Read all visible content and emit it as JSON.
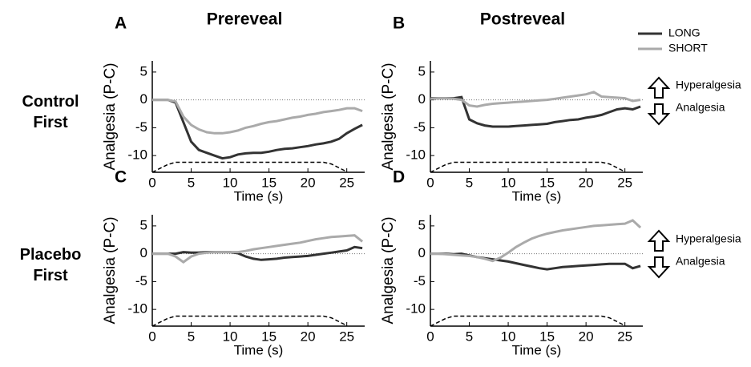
{
  "column_titles": [
    "Prereveal",
    "Postreveal"
  ],
  "row_labels": [
    "Control First",
    "Placebo First"
  ],
  "chart_data": [
    {
      "type": "line",
      "label": "A",
      "ylabel": "Analgesia (P-C)",
      "xlabel": "Time (s)",
      "x": [
        0,
        1,
        2,
        3,
        4,
        5,
        6,
        7,
        8,
        9,
        10,
        11,
        12,
        13,
        14,
        15,
        16,
        17,
        18,
        19,
        20,
        21,
        22,
        23,
        24,
        25,
        26,
        27
      ],
      "xlim": [
        0,
        27.3
      ],
      "ylim": [
        -13,
        7
      ],
      "xticks": [
        0,
        5,
        10,
        15,
        20,
        25
      ],
      "yticks": [
        -10,
        -5,
        0,
        5
      ],
      "hline": 0,
      "series": [
        {
          "color": "#333333",
          "values": [
            0,
            0,
            0,
            -0.5,
            -4,
            -7.5,
            -9,
            -9.5,
            -10,
            -10.5,
            -10.3,
            -9.8,
            -9.6,
            -9.5,
            -9.5,
            -9.3,
            -9,
            -8.8,
            -8.7,
            -8.5,
            -8.3,
            -8,
            -7.8,
            -7.5,
            -7,
            -6,
            -5.2,
            -4.5
          ]
        },
        {
          "color": "#aaaaaa",
          "values": [
            0,
            0,
            0,
            -0.3,
            -3,
            -4.5,
            -5.3,
            -5.8,
            -6,
            -6,
            -5.8,
            -5.5,
            -5,
            -4.7,
            -4.3,
            -4,
            -3.8,
            -3.5,
            -3.2,
            -3,
            -2.7,
            -2.5,
            -2.2,
            -2,
            -1.8,
            -1.5,
            -1.5,
            -2
          ]
        },
        {
          "color": "#000000",
          "style": "dashed",
          "values": [
            -13,
            -12.3,
            -11.6,
            -11.2,
            -11.2,
            -11.2,
            -11.2,
            -11.2,
            -11.2,
            -11.2,
            -11.2,
            -11.2,
            -11.2,
            -11.2,
            -11.2,
            -11.2,
            -11.2,
            -11.2,
            -11.2,
            -11.2,
            -11.2,
            -11.2,
            -11.2,
            -11.5,
            -12.2,
            -12.9,
            null,
            null
          ]
        }
      ]
    },
    {
      "type": "line",
      "label": "B",
      "ylabel": "Analgesia (P-C)",
      "xlabel": "Time (s)",
      "x": [
        0,
        1,
        2,
        3,
        4,
        5,
        6,
        7,
        8,
        9,
        10,
        11,
        12,
        13,
        14,
        15,
        16,
        17,
        18,
        19,
        20,
        21,
        22,
        23,
        24,
        25,
        26,
        27
      ],
      "xlim": [
        0,
        27.3
      ],
      "ylim": [
        -13,
        7
      ],
      "xticks": [
        0,
        5,
        10,
        15,
        20,
        25
      ],
      "yticks": [
        -10,
        -5,
        0,
        5
      ],
      "hline": 0,
      "annotations": [
        "Hyperalgesia",
        "Analgesia"
      ],
      "series": [
        {
          "name": "LONG",
          "color": "#333333",
          "values": [
            0.3,
            0.3,
            0.3,
            0.3,
            0.5,
            -3.5,
            -4.2,
            -4.6,
            -4.8,
            -4.8,
            -4.8,
            -4.7,
            -4.6,
            -4.5,
            -4.4,
            -4.3,
            -4,
            -3.8,
            -3.6,
            -3.5,
            -3.2,
            -3,
            -2.7,
            -2.2,
            -1.7,
            -1.5,
            -1.7,
            -1.2
          ]
        },
        {
          "name": "SHORT",
          "color": "#aaaaaa",
          "values": [
            0.2,
            0.3,
            0.3,
            0.2,
            0,
            -1,
            -1.2,
            -0.9,
            -0.7,
            -0.6,
            -0.5,
            -0.4,
            -0.3,
            -0.2,
            -0.1,
            0,
            0.2,
            0.4,
            0.6,
            0.8,
            1,
            1.4,
            0.6,
            0.5,
            0.4,
            0.3,
            -0.2,
            0
          ]
        },
        {
          "color": "#000000",
          "style": "dashed",
          "values": [
            -13,
            -12.3,
            -11.6,
            -11.2,
            -11.2,
            -11.2,
            -11.2,
            -11.2,
            -11.2,
            -11.2,
            -11.2,
            -11.2,
            -11.2,
            -11.2,
            -11.2,
            -11.2,
            -11.2,
            -11.2,
            -11.2,
            -11.2,
            -11.2,
            -11.2,
            -11.2,
            -11.5,
            -12.2,
            -12.9,
            null,
            null
          ]
        }
      ]
    },
    {
      "type": "line",
      "label": "C",
      "ylabel": "Analgesia (P-C)",
      "xlabel": "Time (s)",
      "x": [
        0,
        1,
        2,
        3,
        4,
        5,
        6,
        7,
        8,
        9,
        10,
        11,
        12,
        13,
        14,
        15,
        16,
        17,
        18,
        19,
        20,
        21,
        22,
        23,
        24,
        25,
        26,
        27
      ],
      "xlim": [
        0,
        27.3
      ],
      "ylim": [
        -13,
        7
      ],
      "xticks": [
        0,
        5,
        10,
        15,
        20,
        25
      ],
      "yticks": [
        -10,
        -5,
        0,
        5
      ],
      "hline": 0,
      "series": [
        {
          "color": "#333333",
          "values": [
            0,
            0,
            0,
            0,
            0.3,
            0.2,
            0.2,
            0.3,
            0.3,
            0.3,
            0.3,
            0.1,
            -0.5,
            -0.9,
            -1.1,
            -1,
            -0.9,
            -0.7,
            -0.6,
            -0.5,
            -0.4,
            -0.2,
            0,
            0.2,
            0.4,
            0.6,
            1.2,
            1
          ]
        },
        {
          "color": "#aaaaaa",
          "values": [
            0,
            0,
            0,
            -0.5,
            -1.5,
            -0.5,
            0,
            0.2,
            0.3,
            0.3,
            0.3,
            0.3,
            0.5,
            0.8,
            1,
            1.2,
            1.4,
            1.6,
            1.8,
            2,
            2.3,
            2.6,
            2.8,
            3,
            3.1,
            3.2,
            3.3,
            2.2
          ]
        },
        {
          "color": "#000000",
          "style": "dashed",
          "values": [
            -13,
            -12.3,
            -11.6,
            -11.2,
            -11.2,
            -11.2,
            -11.2,
            -11.2,
            -11.2,
            -11.2,
            -11.2,
            -11.2,
            -11.2,
            -11.2,
            -11.2,
            -11.2,
            -11.2,
            -11.2,
            -11.2,
            -11.2,
            -11.2,
            -11.2,
            -11.2,
            -11.5,
            -12.2,
            -12.9,
            null,
            null
          ]
        }
      ]
    },
    {
      "type": "line",
      "label": "D",
      "ylabel": "Analgesia (P-C)",
      "xlabel": "Time (s)",
      "x": [
        0,
        1,
        2,
        3,
        4,
        5,
        6,
        7,
        8,
        9,
        10,
        11,
        12,
        13,
        14,
        15,
        16,
        17,
        18,
        19,
        20,
        21,
        22,
        23,
        24,
        25,
        26,
        27
      ],
      "xlim": [
        0,
        27.3
      ],
      "ylim": [
        -13,
        7
      ],
      "xticks": [
        0,
        5,
        10,
        15,
        20,
        25
      ],
      "yticks": [
        -10,
        -5,
        0,
        5
      ],
      "hline": 0,
      "annotations": [
        "Hyperalgesia",
        "Analgesia"
      ],
      "series": [
        {
          "color": "#333333",
          "values": [
            0,
            0,
            0,
            -0.1,
            0,
            -0.3,
            -0.6,
            -0.8,
            -1,
            -1.2,
            -1.4,
            -1.7,
            -2,
            -2.3,
            -2.6,
            -2.8,
            -2.6,
            -2.4,
            -2.3,
            -2.2,
            -2.1,
            -2,
            -1.9,
            -1.8,
            -1.8,
            -1.8,
            -2.6,
            -2.2
          ]
        },
        {
          "color": "#aaaaaa",
          "values": [
            0,
            0,
            -0.1,
            -0.2,
            -0.3,
            -0.4,
            -0.6,
            -0.9,
            -1.3,
            -0.7,
            0.2,
            1.2,
            2,
            2.7,
            3.2,
            3.6,
            3.9,
            4.2,
            4.4,
            4.6,
            4.8,
            5,
            5.1,
            5.2,
            5.3,
            5.4,
            6,
            4.7
          ]
        },
        {
          "color": "#000000",
          "style": "dashed",
          "values": [
            -13,
            -12.3,
            -11.6,
            -11.2,
            -11.2,
            -11.2,
            -11.2,
            -11.2,
            -11.2,
            -11.2,
            -11.2,
            -11.2,
            -11.2,
            -11.2,
            -11.2,
            -11.2,
            -11.2,
            -11.2,
            -11.2,
            -11.2,
            -11.2,
            -11.2,
            -11.2,
            -11.5,
            -12.2,
            -12.9,
            null,
            null
          ]
        }
      ]
    }
  ]
}
